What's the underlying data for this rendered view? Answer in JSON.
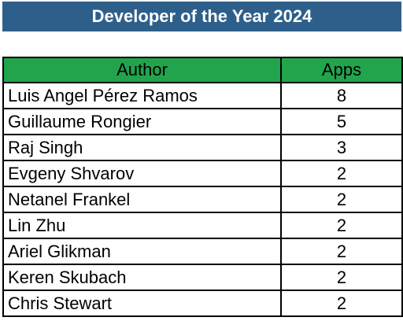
{
  "title": "Developer of the Year 2024",
  "columns": {
    "author": "Author",
    "apps": "Apps"
  },
  "rows": [
    {
      "author": "Luis Angel Pérez Ramos",
      "apps": "8"
    },
    {
      "author": "Guillaume Rongier",
      "apps": "5"
    },
    {
      "author": "Raj Singh",
      "apps": "3"
    },
    {
      "author": "Evgeny Shvarov",
      "apps": "2"
    },
    {
      "author": "Netanel Frankel",
      "apps": "2"
    },
    {
      "author": "Lin Zhu",
      "apps": "2"
    },
    {
      "author": "Ariel Glikman",
      "apps": "2"
    },
    {
      "author": "Keren Skubach",
      "apps": "2"
    },
    {
      "author": "Chris Stewart",
      "apps": "2"
    }
  ],
  "colors": {
    "title_bg": "#2e5f8a",
    "header_bg": "#22a44c"
  }
}
